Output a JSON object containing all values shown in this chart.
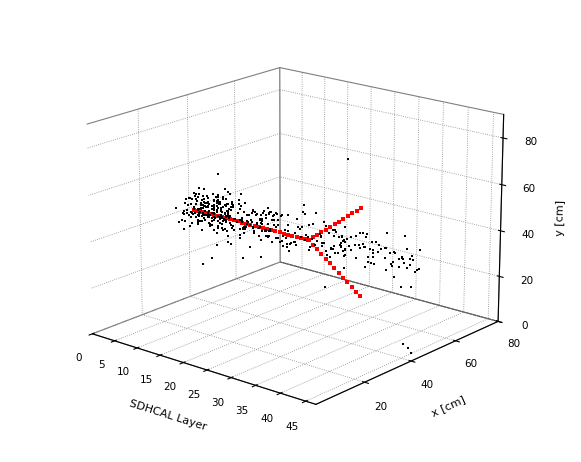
{
  "xlabel": "SDHCAL Layer",
  "ylabel": "x [cm]",
  "zlabel": "y [cm]",
  "xlim": [
    0,
    47
  ],
  "ylim": [
    0,
    80
  ],
  "zlim": [
    0,
    90
  ],
  "x_ticks": [
    0,
    5,
    10,
    15,
    20,
    25,
    30,
    35,
    40,
    45
  ],
  "y_ticks": [
    20,
    40,
    60,
    80
  ],
  "z_ticks": [
    0,
    20,
    40,
    60,
    80
  ],
  "elev": 18,
  "azim": -50,
  "shower_seed": 12345,
  "track_color": "#ff0000",
  "hit_color": "#000000"
}
